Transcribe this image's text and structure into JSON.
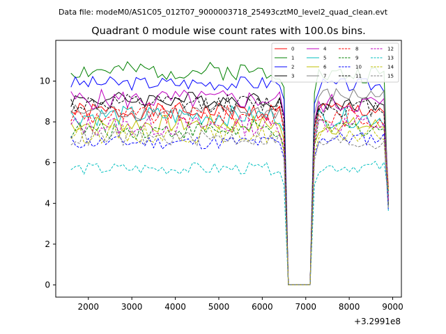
{
  "chart_data": {
    "type": "line",
    "suptitle": "Data file: modeM0/AS1C05_012T07_9000003718_25493cztM0_level2_quad_clean.evt",
    "title": "Quadrant 0 module wise count rates with 100.0s bins.",
    "xlabel": "",
    "ylabel": "",
    "x_offset_label": "+3.2991e8",
    "xlim": [
      1250,
      9200
    ],
    "ylim": [
      -0.6,
      12.0
    ],
    "xticks": [
      2000,
      3000,
      4000,
      5000,
      6000,
      7000,
      8000,
      9000
    ],
    "yticks": [
      0,
      2,
      4,
      6,
      8,
      10
    ],
    "x": [
      1600,
      1700,
      1800,
      1900,
      2000,
      2100,
      2200,
      2300,
      2400,
      2500,
      2600,
      2700,
      2800,
      2900,
      3000,
      3100,
      3200,
      3300,
      3400,
      3500,
      3600,
      3700,
      3800,
      3900,
      4000,
      4100,
      4200,
      4300,
      4400,
      4500,
      4600,
      4700,
      4800,
      4900,
      5000,
      5100,
      5200,
      5300,
      5400,
      5500,
      5600,
      5700,
      5800,
      5900,
      6000,
      6100,
      6200,
      6300,
      6400,
      6500,
      6600,
      6700,
      6800,
      6900,
      7000,
      7100,
      7200,
      7300,
      7400,
      7500,
      7600,
      7700,
      7800,
      7900,
      8000,
      8100,
      8200,
      8300,
      8400,
      8500,
      8600,
      8700,
      8800,
      8900
    ],
    "gap_values": [
      null,
      0,
      0,
      0,
      0,
      0,
      0,
      null
    ],
    "legend": {
      "location": "top-right",
      "columns": 4
    },
    "series": [
      {
        "name": "0",
        "color": "#ff0000",
        "dash": "solid",
        "base": 8.5,
        "amp": 0.45,
        "seed": 1,
        "post": 8.6
      },
      {
        "name": "1",
        "color": "#008000",
        "dash": "solid",
        "base": 10.5,
        "amp": 0.45,
        "seed": 2,
        "post": 10.3
      },
      {
        "name": "2",
        "color": "#0000ff",
        "dash": "solid",
        "base": 9.9,
        "amp": 0.35,
        "seed": 3,
        "post": 9.8
      },
      {
        "name": "3",
        "color": "#000000",
        "dash": "solid",
        "base": 9.1,
        "amp": 0.4,
        "seed": 4,
        "post": 8.9
      },
      {
        "name": "4",
        "color": "#bf00bf",
        "dash": "solid",
        "base": 9.1,
        "amp": 0.5,
        "seed": 5,
        "post": 8.9
      },
      {
        "name": "5",
        "color": "#00bfbf",
        "dash": "solid",
        "base": 8.3,
        "amp": 0.5,
        "seed": 6,
        "post": 8.2
      },
      {
        "name": "6",
        "color": "#bfbf00",
        "dash": "solid",
        "base": 7.9,
        "amp": 0.45,
        "seed": 7,
        "post": 7.8
      },
      {
        "name": "7",
        "color": "#808080",
        "dash": "solid",
        "base": 8.5,
        "amp": 0.4,
        "seed": 8,
        "post": 9.3
      },
      {
        "name": "8",
        "color": "#ff0000",
        "dash": "dash",
        "base": 8.3,
        "amp": 0.5,
        "seed": 9,
        "post": 8.2
      },
      {
        "name": "9",
        "color": "#008000",
        "dash": "dash",
        "base": 7.6,
        "amp": 0.45,
        "seed": 10,
        "post": 7.7
      },
      {
        "name": "10",
        "color": "#0000ff",
        "dash": "dash",
        "base": 7.0,
        "amp": 0.35,
        "seed": 11,
        "post": 7.2
      },
      {
        "name": "11",
        "color": "#000000",
        "dash": "dash",
        "base": 8.9,
        "amp": 0.45,
        "seed": 12,
        "post": 8.7
      },
      {
        "name": "12",
        "color": "#bf00bf",
        "dash": "dash",
        "base": 7.8,
        "amp": 0.5,
        "seed": 13,
        "post": 7.9
      },
      {
        "name": "13",
        "color": "#00bfbf",
        "dash": "dash",
        "base": 5.7,
        "amp": 0.3,
        "seed": 14,
        "post": 5.8
      },
      {
        "name": "14",
        "color": "#bfbf00",
        "dash": "dash",
        "base": 7.4,
        "amp": 0.45,
        "seed": 15,
        "post": 7.4
      },
      {
        "name": "15",
        "color": "#808080",
        "dash": "dash",
        "base": 7.2,
        "amp": 0.4,
        "seed": 16,
        "post": 7.0
      }
    ]
  }
}
